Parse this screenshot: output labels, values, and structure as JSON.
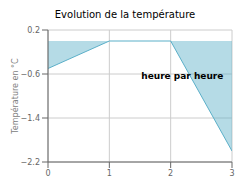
{
  "chart_data": {
    "type": "line",
    "title": "Evolution de la température",
    "ylabel": "Température en °C",
    "annotations": [
      "heure par heure"
    ],
    "x": [
      0,
      1,
      2,
      3
    ],
    "series": [
      {
        "name": "Température en °C",
        "color": "#5bafc8",
        "values": [
          -0.5,
          0.0,
          0.0,
          -2.0
        ]
      }
    ],
    "xlim": [
      0,
      3
    ],
    "ylim": [
      -2.2,
      0.2
    ],
    "xticks": [
      0,
      1,
      2,
      3
    ],
    "yticks": [
      {
        "value": 0.2,
        "label": "0.2"
      },
      {
        "value": -0.6,
        "label": "−0.6"
      },
      {
        "value": -1.4,
        "label": "−1.4"
      },
      {
        "value": -2.2,
        "label": "−2.2"
      }
    ],
    "grid": true
  }
}
